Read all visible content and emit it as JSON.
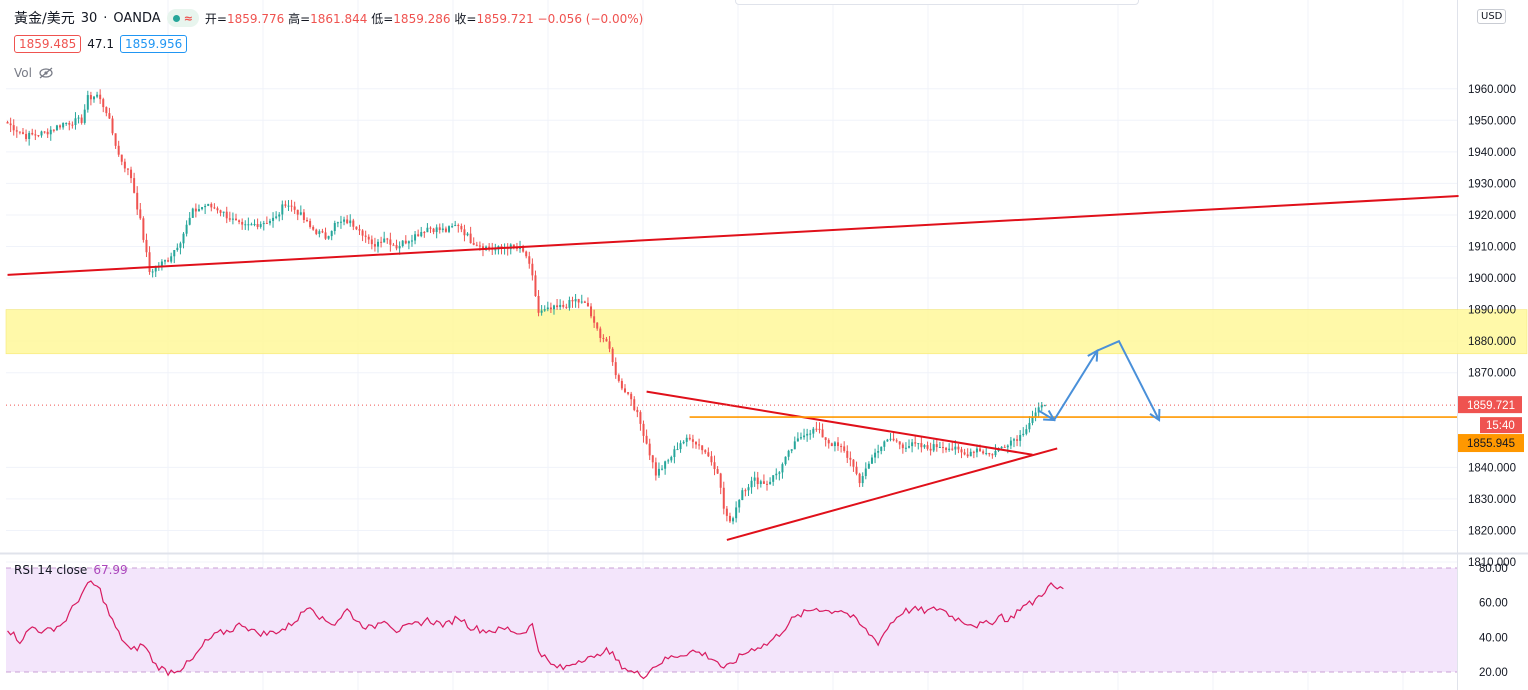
{
  "legend": {
    "symbol": "黃金/美元",
    "interval": "30",
    "broker": "OANDA",
    "badge_wave": "≈",
    "open_label": "开=",
    "open": "1859.776",
    "high_label": "高=",
    "high": "1861.844",
    "low_label": "低=",
    "low": "1859.286",
    "close_label": "收=",
    "close": "1859.721",
    "change": "−0.056 (−0.00%)"
  },
  "quote": {
    "bid": "1859.485",
    "spread": "47.1",
    "ask": "1859.956"
  },
  "vol_label": "Vol",
  "rsi": {
    "label": "RSI 14 close",
    "value": "67.99"
  },
  "currency": "USD",
  "colors": {
    "up": "#26a69a",
    "down": "#ef5350",
    "trendline": "#e0101a",
    "zone": "#fff9a0",
    "orange": "#ff9800",
    "arrow": "#4a90d9",
    "rsi": "#d81b60",
    "rsi_band": "#f3e5fb"
  },
  "chart_data": [
    {
      "type": "candlestick",
      "title": "",
      "ylim": [
        1805,
        1975
      ],
      "y_ticks": [
        "1960.000",
        "1950.000",
        "1940.000",
        "1930.000",
        "1920.000",
        "1910.000",
        "1900.000",
        "1890.000",
        "1880.000",
        "1870.000",
        "1840.000",
        "1830.000",
        "1820.000",
        "1810.000"
      ],
      "last_price_label": "1859.721",
      "countdown": "15:40",
      "level_label": "1855.945",
      "horizontal_level": 1855.945,
      "resistance_zone": [
        1876,
        1890
      ],
      "keypoints": [
        [
          0,
          1949
        ],
        [
          6,
          1945
        ],
        [
          12,
          1946
        ],
        [
          18,
          1949
        ],
        [
          24,
          1950
        ],
        [
          26,
          1957
        ],
        [
          29,
          1958
        ],
        [
          32,
          1953
        ],
        [
          36,
          1939
        ],
        [
          40,
          1932
        ],
        [
          43,
          1918
        ],
        [
          46,
          1902
        ],
        [
          52,
          1906
        ],
        [
          56,
          1912
        ],
        [
          60,
          1921
        ],
        [
          64,
          1923
        ],
        [
          68,
          1922
        ],
        [
          72,
          1919
        ],
        [
          76,
          1916
        ],
        [
          80,
          1917
        ],
        [
          84,
          1918
        ],
        [
          87,
          1919
        ],
        [
          90,
          1924
        ],
        [
          94,
          1921
        ],
        [
          98,
          1916
        ],
        [
          103,
          1913
        ],
        [
          106,
          1917
        ],
        [
          110,
          1918
        ],
        [
          114,
          1916
        ],
        [
          118,
          1910
        ],
        [
          122,
          1913
        ],
        [
          126,
          1910
        ],
        [
          131,
          1913
        ],
        [
          136,
          1916
        ],
        [
          142,
          1915
        ],
        [
          146,
          1917
        ],
        [
          150,
          1912
        ],
        [
          154,
          1910
        ],
        [
          158,
          1909
        ],
        [
          162,
          1910
        ],
        [
          166,
          1909
        ],
        [
          168,
          1907
        ],
        [
          170,
          1900
        ],
        [
          172,
          1889
        ],
        [
          176,
          1890
        ],
        [
          180,
          1891
        ],
        [
          184,
          1893
        ],
        [
          188,
          1891
        ],
        [
          190,
          1885
        ],
        [
          192,
          1882
        ],
        [
          194,
          1880
        ],
        [
          196,
          1873
        ],
        [
          198,
          1867
        ],
        [
          202,
          1862
        ],
        [
          206,
          1851
        ],
        [
          210,
          1838
        ],
        [
          214,
          1842
        ],
        [
          218,
          1848
        ],
        [
          222,
          1849
        ],
        [
          226,
          1845
        ],
        [
          230,
          1839
        ],
        [
          232,
          1827
        ],
        [
          234,
          1822
        ],
        [
          238,
          1833
        ],
        [
          242,
          1836
        ],
        [
          246,
          1835
        ],
        [
          250,
          1839
        ],
        [
          254,
          1846
        ],
        [
          258,
          1851
        ],
        [
          262,
          1852
        ],
        [
          266,
          1848
        ],
        [
          270,
          1846
        ],
        [
          274,
          1841
        ],
        [
          276,
          1834
        ],
        [
          278,
          1840
        ],
        [
          282,
          1846
        ],
        [
          286,
          1849
        ],
        [
          290,
          1847
        ],
        [
          294,
          1847
        ],
        [
          298,
          1846
        ],
        [
          302,
          1847
        ],
        [
          306,
          1846
        ],
        [
          310,
          1844
        ],
        [
          314,
          1846
        ],
        [
          318,
          1844
        ],
        [
          320,
          1845
        ],
        [
          324,
          1848
        ],
        [
          328,
          1850
        ],
        [
          330,
          1853
        ],
        [
          332,
          1856
        ],
        [
          334,
          1858
        ],
        [
          336,
          1859.7
        ]
      ],
      "annotations": {
        "long_trendline": [
          [
            0,
            1901
          ],
          [
            470,
            1926
          ]
        ],
        "upper_triangle_line": [
          [
            207,
            1864
          ],
          [
            332,
            1844
          ]
        ],
        "lower_triangle_line": [
          [
            233,
            1817
          ],
          [
            340,
            1846
          ]
        ],
        "projection_arrow_path": [
          [
            334,
            1858
          ],
          [
            339,
            1855
          ],
          [
            353,
            1877
          ],
          [
            360,
            1880
          ],
          [
            373,
            1855
          ]
        ]
      }
    },
    {
      "type": "line",
      "title": "",
      "series": [
        {
          "name": "RSI 14 close",
          "keypoints": [
            [
              0,
              45
            ],
            [
              4,
              38
            ],
            [
              8,
              46
            ],
            [
              12,
              43
            ],
            [
              18,
              48
            ],
            [
              24,
              65
            ],
            [
              27,
              72
            ],
            [
              30,
              67
            ],
            [
              33,
              53
            ],
            [
              36,
              42
            ],
            [
              40,
              32
            ],
            [
              44,
              36
            ],
            [
              48,
              24
            ],
            [
              52,
              20
            ],
            [
              56,
              22
            ],
            [
              60,
              27
            ],
            [
              64,
              37
            ],
            [
              68,
              42
            ],
            [
              72,
              44
            ],
            [
              76,
              48
            ],
            [
              80,
              43
            ],
            [
              84,
              42
            ],
            [
              90,
              45
            ],
            [
              94,
              51
            ],
            [
              98,
              59
            ],
            [
              102,
              50
            ],
            [
              106,
              48
            ],
            [
              110,
              56
            ],
            [
              114,
              48
            ],
            [
              118,
              45
            ],
            [
              122,
              51
            ],
            [
              126,
              44
            ],
            [
              130,
              46
            ],
            [
              136,
              50
            ],
            [
              142,
              47
            ],
            [
              146,
              52
            ],
            [
              150,
              46
            ],
            [
              154,
              44
            ],
            [
              158,
              44
            ],
            [
              162,
              45
            ],
            [
              166,
              42
            ],
            [
              170,
              47
            ],
            [
              172,
              33
            ],
            [
              176,
              24
            ],
            [
              180,
              22
            ],
            [
              184,
              26
            ],
            [
              188,
              29
            ],
            [
              190,
              27
            ],
            [
              193,
              33
            ],
            [
              196,
              30
            ],
            [
              198,
              25
            ],
            [
              202,
              20
            ],
            [
              206,
              18
            ],
            [
              210,
              24
            ],
            [
              214,
              28
            ],
            [
              218,
              30
            ],
            [
              222,
              32
            ],
            [
              226,
              30
            ],
            [
              230,
              26
            ],
            [
              232,
              21
            ],
            [
              234,
              24
            ],
            [
              238,
              30
            ],
            [
              242,
              34
            ],
            [
              246,
              36
            ],
            [
              250,
              42
            ],
            [
              254,
              50
            ],
            [
              258,
              54
            ],
            [
              262,
              57
            ],
            [
              266,
              55
            ],
            [
              270,
              56
            ],
            [
              274,
              51
            ],
            [
              278,
              44
            ],
            [
              282,
              37
            ],
            [
              286,
              48
            ],
            [
              290,
              55
            ],
            [
              294,
              56
            ],
            [
              298,
              55
            ],
            [
              302,
              57
            ],
            [
              306,
              52
            ],
            [
              310,
              49
            ],
            [
              314,
              47
            ],
            [
              318,
              48
            ],
            [
              322,
              53
            ],
            [
              324,
              49
            ],
            [
              328,
              57
            ],
            [
              332,
              60
            ],
            [
              336,
              67
            ],
            [
              338,
              70
            ],
            [
              340,
              67.99
            ],
            [
              342,
              68
            ]
          ]
        }
      ],
      "ylim": [
        15,
        82
      ],
      "y_ticks": [
        "80.00",
        "60.00",
        "40.00",
        "20.00"
      ],
      "band": [
        20,
        80
      ]
    }
  ]
}
